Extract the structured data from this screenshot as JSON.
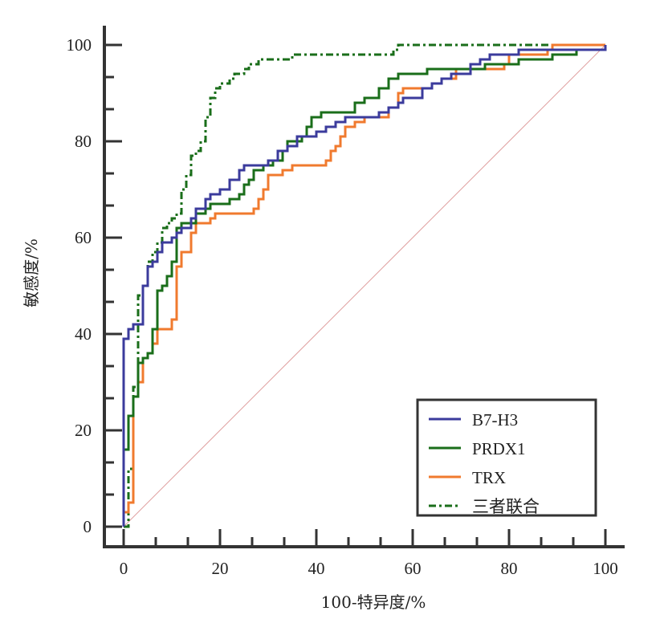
{
  "chart_data": {
    "type": "line",
    "title": "",
    "xlabel": "100-特异度/%",
    "ylabel": "敏感度/%",
    "xlim": [
      0,
      100
    ],
    "ylim": [
      0,
      100
    ],
    "x_ticks": [
      0,
      20,
      40,
      60,
      80,
      100
    ],
    "y_ticks": [
      0,
      20,
      40,
      60,
      80,
      100
    ],
    "x_tick_labels": [
      "0",
      "20",
      "40",
      "60",
      "80",
      "100"
    ],
    "y_tick_labels": [
      "0",
      "20",
      "40",
      "60",
      "80",
      "100"
    ],
    "minor_ticks_per_major": 3,
    "grid": false,
    "legend_position": "bottom-right",
    "reference_line": {
      "name": "diagonal",
      "x": [
        0,
        100
      ],
      "y": [
        0,
        100
      ],
      "color": "#e0a0a0"
    },
    "series": [
      {
        "name": "B7-H3",
        "color": "#3b3b9c",
        "style": "solid",
        "points": [
          [
            0,
            0
          ],
          [
            0,
            16
          ],
          [
            0,
            39
          ],
          [
            1,
            39
          ],
          [
            1,
            41
          ],
          [
            2,
            41
          ],
          [
            2,
            42
          ],
          [
            4,
            42
          ],
          [
            4,
            50
          ],
          [
            5,
            50
          ],
          [
            5,
            54
          ],
          [
            6,
            54
          ],
          [
            6,
            55
          ],
          [
            7,
            55
          ],
          [
            7,
            57
          ],
          [
            8,
            57
          ],
          [
            8,
            59
          ],
          [
            10,
            59
          ],
          [
            10,
            60
          ],
          [
            11,
            60
          ],
          [
            11,
            61
          ],
          [
            12,
            61
          ],
          [
            12,
            62
          ],
          [
            14,
            62
          ],
          [
            14,
            64
          ],
          [
            15,
            64
          ],
          [
            15,
            66
          ],
          [
            17,
            66
          ],
          [
            17,
            68
          ],
          [
            18,
            68
          ],
          [
            18,
            69
          ],
          [
            20,
            69
          ],
          [
            20,
            70
          ],
          [
            22,
            70
          ],
          [
            22,
            72
          ],
          [
            24,
            72
          ],
          [
            24,
            74
          ],
          [
            25,
            74
          ],
          [
            25,
            75
          ],
          [
            30,
            75
          ],
          [
            30,
            76
          ],
          [
            32,
            76
          ],
          [
            32,
            78
          ],
          [
            34,
            78
          ],
          [
            34,
            79
          ],
          [
            36,
            79
          ],
          [
            36,
            81
          ],
          [
            40,
            81
          ],
          [
            40,
            82
          ],
          [
            42,
            82
          ],
          [
            42,
            83
          ],
          [
            44,
            83
          ],
          [
            44,
            84
          ],
          [
            46,
            84
          ],
          [
            46,
            85
          ],
          [
            53,
            85
          ],
          [
            53,
            86
          ],
          [
            55,
            86
          ],
          [
            55,
            87
          ],
          [
            57,
            87
          ],
          [
            57,
            88
          ],
          [
            58,
            88
          ],
          [
            58,
            89
          ],
          [
            62,
            89
          ],
          [
            62,
            91
          ],
          [
            64,
            91
          ],
          [
            64,
            92
          ],
          [
            66,
            92
          ],
          [
            66,
            93
          ],
          [
            68,
            93
          ],
          [
            68,
            94
          ],
          [
            72,
            94
          ],
          [
            72,
            96
          ],
          [
            74,
            96
          ],
          [
            74,
            97
          ],
          [
            76,
            97
          ],
          [
            76,
            98
          ],
          [
            82,
            98
          ],
          [
            82,
            99
          ],
          [
            100,
            99
          ],
          [
            100,
            100
          ]
        ]
      },
      {
        "name": "PRDX1",
        "color": "#1a6e1a",
        "style": "solid",
        "points": [
          [
            0,
            0
          ],
          [
            0,
            3
          ],
          [
            0,
            16
          ],
          [
            1,
            16
          ],
          [
            1,
            23
          ],
          [
            2,
            23
          ],
          [
            2,
            27
          ],
          [
            3,
            27
          ],
          [
            3,
            34
          ],
          [
            4,
            34
          ],
          [
            4,
            35
          ],
          [
            5,
            35
          ],
          [
            5,
            36
          ],
          [
            6,
            36
          ],
          [
            6,
            41
          ],
          [
            7,
            41
          ],
          [
            7,
            49
          ],
          [
            8,
            49
          ],
          [
            8,
            50
          ],
          [
            9,
            50
          ],
          [
            9,
            52
          ],
          [
            10,
            52
          ],
          [
            10,
            55
          ],
          [
            11,
            55
          ],
          [
            11,
            62
          ],
          [
            12,
            62
          ],
          [
            12,
            63
          ],
          [
            15,
            63
          ],
          [
            15,
            65
          ],
          [
            17,
            65
          ],
          [
            17,
            66
          ],
          [
            18,
            66
          ],
          [
            18,
            67
          ],
          [
            22,
            67
          ],
          [
            22,
            68
          ],
          [
            24,
            68
          ],
          [
            24,
            69
          ],
          [
            25,
            69
          ],
          [
            25,
            71
          ],
          [
            26,
            71
          ],
          [
            26,
            72
          ],
          [
            27,
            72
          ],
          [
            27,
            74
          ],
          [
            29,
            74
          ],
          [
            29,
            75
          ],
          [
            31,
            75
          ],
          [
            31,
            76
          ],
          [
            33,
            76
          ],
          [
            33,
            78
          ],
          [
            34,
            78
          ],
          [
            34,
            80
          ],
          [
            37,
            80
          ],
          [
            37,
            81
          ],
          [
            38,
            81
          ],
          [
            38,
            83
          ],
          [
            39,
            83
          ],
          [
            39,
            85
          ],
          [
            41,
            85
          ],
          [
            41,
            86
          ],
          [
            48,
            86
          ],
          [
            48,
            88
          ],
          [
            50,
            88
          ],
          [
            50,
            89
          ],
          [
            53,
            89
          ],
          [
            53,
            91
          ],
          [
            55,
            91
          ],
          [
            55,
            93
          ],
          [
            57,
            93
          ],
          [
            57,
            94
          ],
          [
            63,
            94
          ],
          [
            63,
            95
          ],
          [
            75,
            95
          ],
          [
            75,
            96
          ],
          [
            82,
            96
          ],
          [
            82,
            97
          ],
          [
            89,
            97
          ],
          [
            89,
            98
          ],
          [
            94,
            98
          ],
          [
            94,
            99
          ],
          [
            100,
            99
          ],
          [
            100,
            100
          ]
        ]
      },
      {
        "name": "TRX",
        "color": "#f07a2e",
        "style": "solid",
        "points": [
          [
            0,
            0
          ],
          [
            0,
            3
          ],
          [
            1,
            3
          ],
          [
            1,
            5
          ],
          [
            2,
            5
          ],
          [
            2,
            27
          ],
          [
            3,
            27
          ],
          [
            3,
            30
          ],
          [
            4,
            30
          ],
          [
            4,
            35
          ],
          [
            5,
            35
          ],
          [
            5,
            36
          ],
          [
            6,
            36
          ],
          [
            6,
            38
          ],
          [
            7,
            38
          ],
          [
            7,
            41
          ],
          [
            10,
            41
          ],
          [
            10,
            43
          ],
          [
            11,
            43
          ],
          [
            11,
            54
          ],
          [
            12,
            54
          ],
          [
            12,
            57
          ],
          [
            14,
            57
          ],
          [
            14,
            61
          ],
          [
            15,
            61
          ],
          [
            15,
            63
          ],
          [
            18,
            63
          ],
          [
            18,
            64
          ],
          [
            19,
            64
          ],
          [
            19,
            65
          ],
          [
            27,
            65
          ],
          [
            27,
            66
          ],
          [
            28,
            66
          ],
          [
            28,
            68
          ],
          [
            29,
            68
          ],
          [
            29,
            70
          ],
          [
            30,
            70
          ],
          [
            30,
            73
          ],
          [
            33,
            73
          ],
          [
            33,
            74
          ],
          [
            35,
            74
          ],
          [
            35,
            75
          ],
          [
            42,
            75
          ],
          [
            42,
            76
          ],
          [
            43,
            76
          ],
          [
            43,
            78
          ],
          [
            44,
            78
          ],
          [
            44,
            79
          ],
          [
            45,
            79
          ],
          [
            45,
            81
          ],
          [
            46,
            81
          ],
          [
            46,
            83
          ],
          [
            48,
            83
          ],
          [
            48,
            84
          ],
          [
            50,
            84
          ],
          [
            50,
            85
          ],
          [
            55,
            85
          ],
          [
            55,
            87
          ],
          [
            57,
            87
          ],
          [
            57,
            90
          ],
          [
            58,
            90
          ],
          [
            58,
            91
          ],
          [
            64,
            91
          ],
          [
            64,
            92
          ],
          [
            66,
            92
          ],
          [
            66,
            93
          ],
          [
            69,
            93
          ],
          [
            69,
            95
          ],
          [
            79,
            95
          ],
          [
            79,
            96
          ],
          [
            80,
            96
          ],
          [
            80,
            98
          ],
          [
            88,
            98
          ],
          [
            88,
            99
          ],
          [
            89,
            99
          ],
          [
            89,
            100
          ],
          [
            100,
            100
          ]
        ]
      },
      {
        "name": "三者联合",
        "color": "#1a6e1a",
        "style": "dashdot",
        "points": [
          [
            0,
            0
          ],
          [
            1,
            0
          ],
          [
            1,
            12
          ],
          [
            2,
            12
          ],
          [
            2,
            29
          ],
          [
            3,
            29
          ],
          [
            3,
            48
          ],
          [
            4,
            48
          ],
          [
            4,
            50
          ],
          [
            5,
            50
          ],
          [
            5,
            55
          ],
          [
            6,
            55
          ],
          [
            6,
            57
          ],
          [
            7,
            57
          ],
          [
            7,
            59
          ],
          [
            8,
            59
          ],
          [
            8,
            62
          ],
          [
            9,
            62
          ],
          [
            9,
            63
          ],
          [
            10,
            63
          ],
          [
            10,
            64
          ],
          [
            11,
            64
          ],
          [
            11,
            65
          ],
          [
            12,
            65
          ],
          [
            12,
            70
          ],
          [
            13,
            70
          ],
          [
            13,
            73
          ],
          [
            14,
            73
          ],
          [
            14,
            77
          ],
          [
            15,
            77
          ],
          [
            15,
            78
          ],
          [
            16,
            78
          ],
          [
            16,
            80
          ],
          [
            17,
            80
          ],
          [
            17,
            85
          ],
          [
            18,
            85
          ],
          [
            18,
            89
          ],
          [
            19,
            89
          ],
          [
            19,
            91
          ],
          [
            20,
            91
          ],
          [
            20,
            92
          ],
          [
            22,
            92
          ],
          [
            22,
            93
          ],
          [
            23,
            93
          ],
          [
            23,
            94
          ],
          [
            25,
            94
          ],
          [
            25,
            95
          ],
          [
            26,
            95
          ],
          [
            26,
            96
          ],
          [
            28,
            96
          ],
          [
            28,
            97
          ],
          [
            35,
            97
          ],
          [
            35,
            98
          ],
          [
            56,
            98
          ],
          [
            56,
            99
          ],
          [
            57,
            99
          ],
          [
            57,
            100
          ],
          [
            100,
            100
          ]
        ]
      }
    ]
  }
}
